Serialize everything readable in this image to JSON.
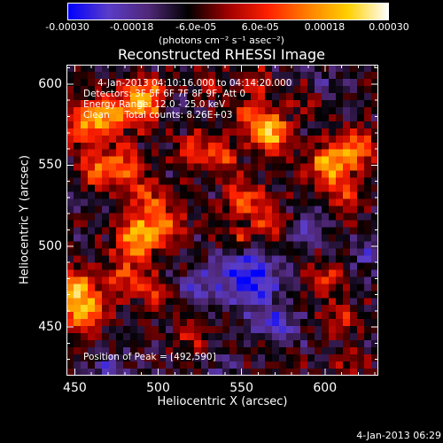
{
  "chart_data": {
    "type": "heatmap",
    "title": "Reconstructed RHESSI Image",
    "xlabel": "Heliocentric X (arcsec)",
    "ylabel": "Heliocentric Y (arcsec)",
    "xlim": [
      445,
      632
    ],
    "ylim": [
      420,
      612
    ],
    "x_ticks": [
      "450",
      "500",
      "550",
      "600"
    ],
    "y_ticks": [
      "450",
      "500",
      "550",
      "600"
    ],
    "colorbar": {
      "range": [
        -0.0003,
        0.0003
      ],
      "tick_labels": [
        "-0.00030",
        "-0.00018",
        "-6.0e-05",
        "6.0e-05",
        "0.00018",
        "0.00030"
      ],
      "units": "(photons cm⁻² s⁻¹ asec⁻²)",
      "colors": [
        "#0000ff",
        "#5a3cc8",
        "#502878",
        "#000000",
        "#a00000",
        "#ff2000",
        "#ff8000",
        "#ffd000",
        "#ffffff"
      ]
    },
    "annotations": {
      "time_range": "4-Jan-2013 04:10:16.000 to 04:14:20.000",
      "detectors": "Detectors: 3F 5F 6F 7F 8F 9F, Att 0",
      "energy": "Energy Range: 12.0 - 25.0 keV",
      "method": "Clean     Total counts: 8.26E+03",
      "peak": "Position of Peak = [492,590]"
    },
    "features": [
      {
        "x": 492,
        "y": 590,
        "amp": 0.0003,
        "sigma": 9
      },
      {
        "x": 470,
        "y": 580,
        "amp": 0.00022,
        "sigma": 8
      },
      {
        "x": 455,
        "y": 575,
        "amp": 0.0002,
        "sigma": 9
      },
      {
        "x": 478,
        "y": 550,
        "amp": 0.0002,
        "sigma": 9
      },
      {
        "x": 462,
        "y": 545,
        "amp": 0.00018,
        "sigma": 7
      },
      {
        "x": 493,
        "y": 530,
        "amp": 0.00016,
        "sigma": 7
      },
      {
        "x": 488,
        "y": 505,
        "amp": 0.00028,
        "sigma": 9
      },
      {
        "x": 505,
        "y": 515,
        "amp": 0.00018,
        "sigma": 8
      },
      {
        "x": 520,
        "y": 560,
        "amp": 0.00015,
        "sigma": 7
      },
      {
        "x": 538,
        "y": 555,
        "amp": 0.00017,
        "sigma": 7
      },
      {
        "x": 555,
        "y": 580,
        "amp": 0.00016,
        "sigma": 7
      },
      {
        "x": 568,
        "y": 570,
        "amp": 0.0003,
        "sigma": 8
      },
      {
        "x": 560,
        "y": 600,
        "amp": 0.00012,
        "sigma": 7
      },
      {
        "x": 552,
        "y": 530,
        "amp": 0.00018,
        "sigma": 8
      },
      {
        "x": 568,
        "y": 515,
        "amp": 0.00014,
        "sigma": 7
      },
      {
        "x": 550,
        "y": 505,
        "amp": 0.00013,
        "sigma": 6
      },
      {
        "x": 603,
        "y": 550,
        "amp": 0.00026,
        "sigma": 9
      },
      {
        "x": 620,
        "y": 560,
        "amp": 0.00022,
        "sigma": 8
      },
      {
        "x": 612,
        "y": 530,
        "amp": 0.00013,
        "sigma": 7
      },
      {
        "x": 455,
        "y": 460,
        "amp": 0.00026,
        "sigma": 9
      },
      {
        "x": 450,
        "y": 475,
        "amp": 0.00024,
        "sigma": 8
      },
      {
        "x": 480,
        "y": 480,
        "amp": 0.00016,
        "sigma": 8
      },
      {
        "x": 498,
        "y": 470,
        "amp": 0.00012,
        "sigma": 7
      },
      {
        "x": 520,
        "y": 445,
        "amp": 0.00011,
        "sigma": 7
      },
      {
        "x": 600,
        "y": 480,
        "amp": 0.00014,
        "sigma": 7
      },
      {
        "x": 610,
        "y": 455,
        "amp": 0.00012,
        "sigma": 7
      },
      {
        "x": 615,
        "y": 430,
        "amp": 0.00011,
        "sigma": 6
      },
      {
        "x": 565,
        "y": 440,
        "amp": 8e-05,
        "sigma": 6
      },
      {
        "x": 530,
        "y": 600,
        "amp": 9e-05,
        "sigma": 6
      },
      {
        "x": 590,
        "y": 590,
        "amp": 8e-05,
        "sigma": 6
      },
      {
        "x": 555,
        "y": 480,
        "amp": -0.00022,
        "sigma": 12
      },
      {
        "x": 570,
        "y": 450,
        "amp": -0.00016,
        "sigma": 9
      },
      {
        "x": 525,
        "y": 475,
        "amp": -0.00012,
        "sigma": 9
      },
      {
        "x": 590,
        "y": 510,
        "amp": -0.0001,
        "sigma": 8
      },
      {
        "x": 470,
        "y": 425,
        "amp": -0.0001,
        "sigma": 7
      },
      {
        "x": 625,
        "y": 495,
        "amp": -9e-05,
        "sigma": 7
      },
      {
        "x": 540,
        "y": 425,
        "amp": -9e-05,
        "sigma": 7
      },
      {
        "x": 510,
        "y": 585,
        "amp": -8e-05,
        "sigma": 7
      },
      {
        "x": 600,
        "y": 600,
        "amp": -7e-05,
        "sigma": 7
      }
    ],
    "background": -8e-05
  },
  "footer_date": "4-Jan-2013 06:29"
}
